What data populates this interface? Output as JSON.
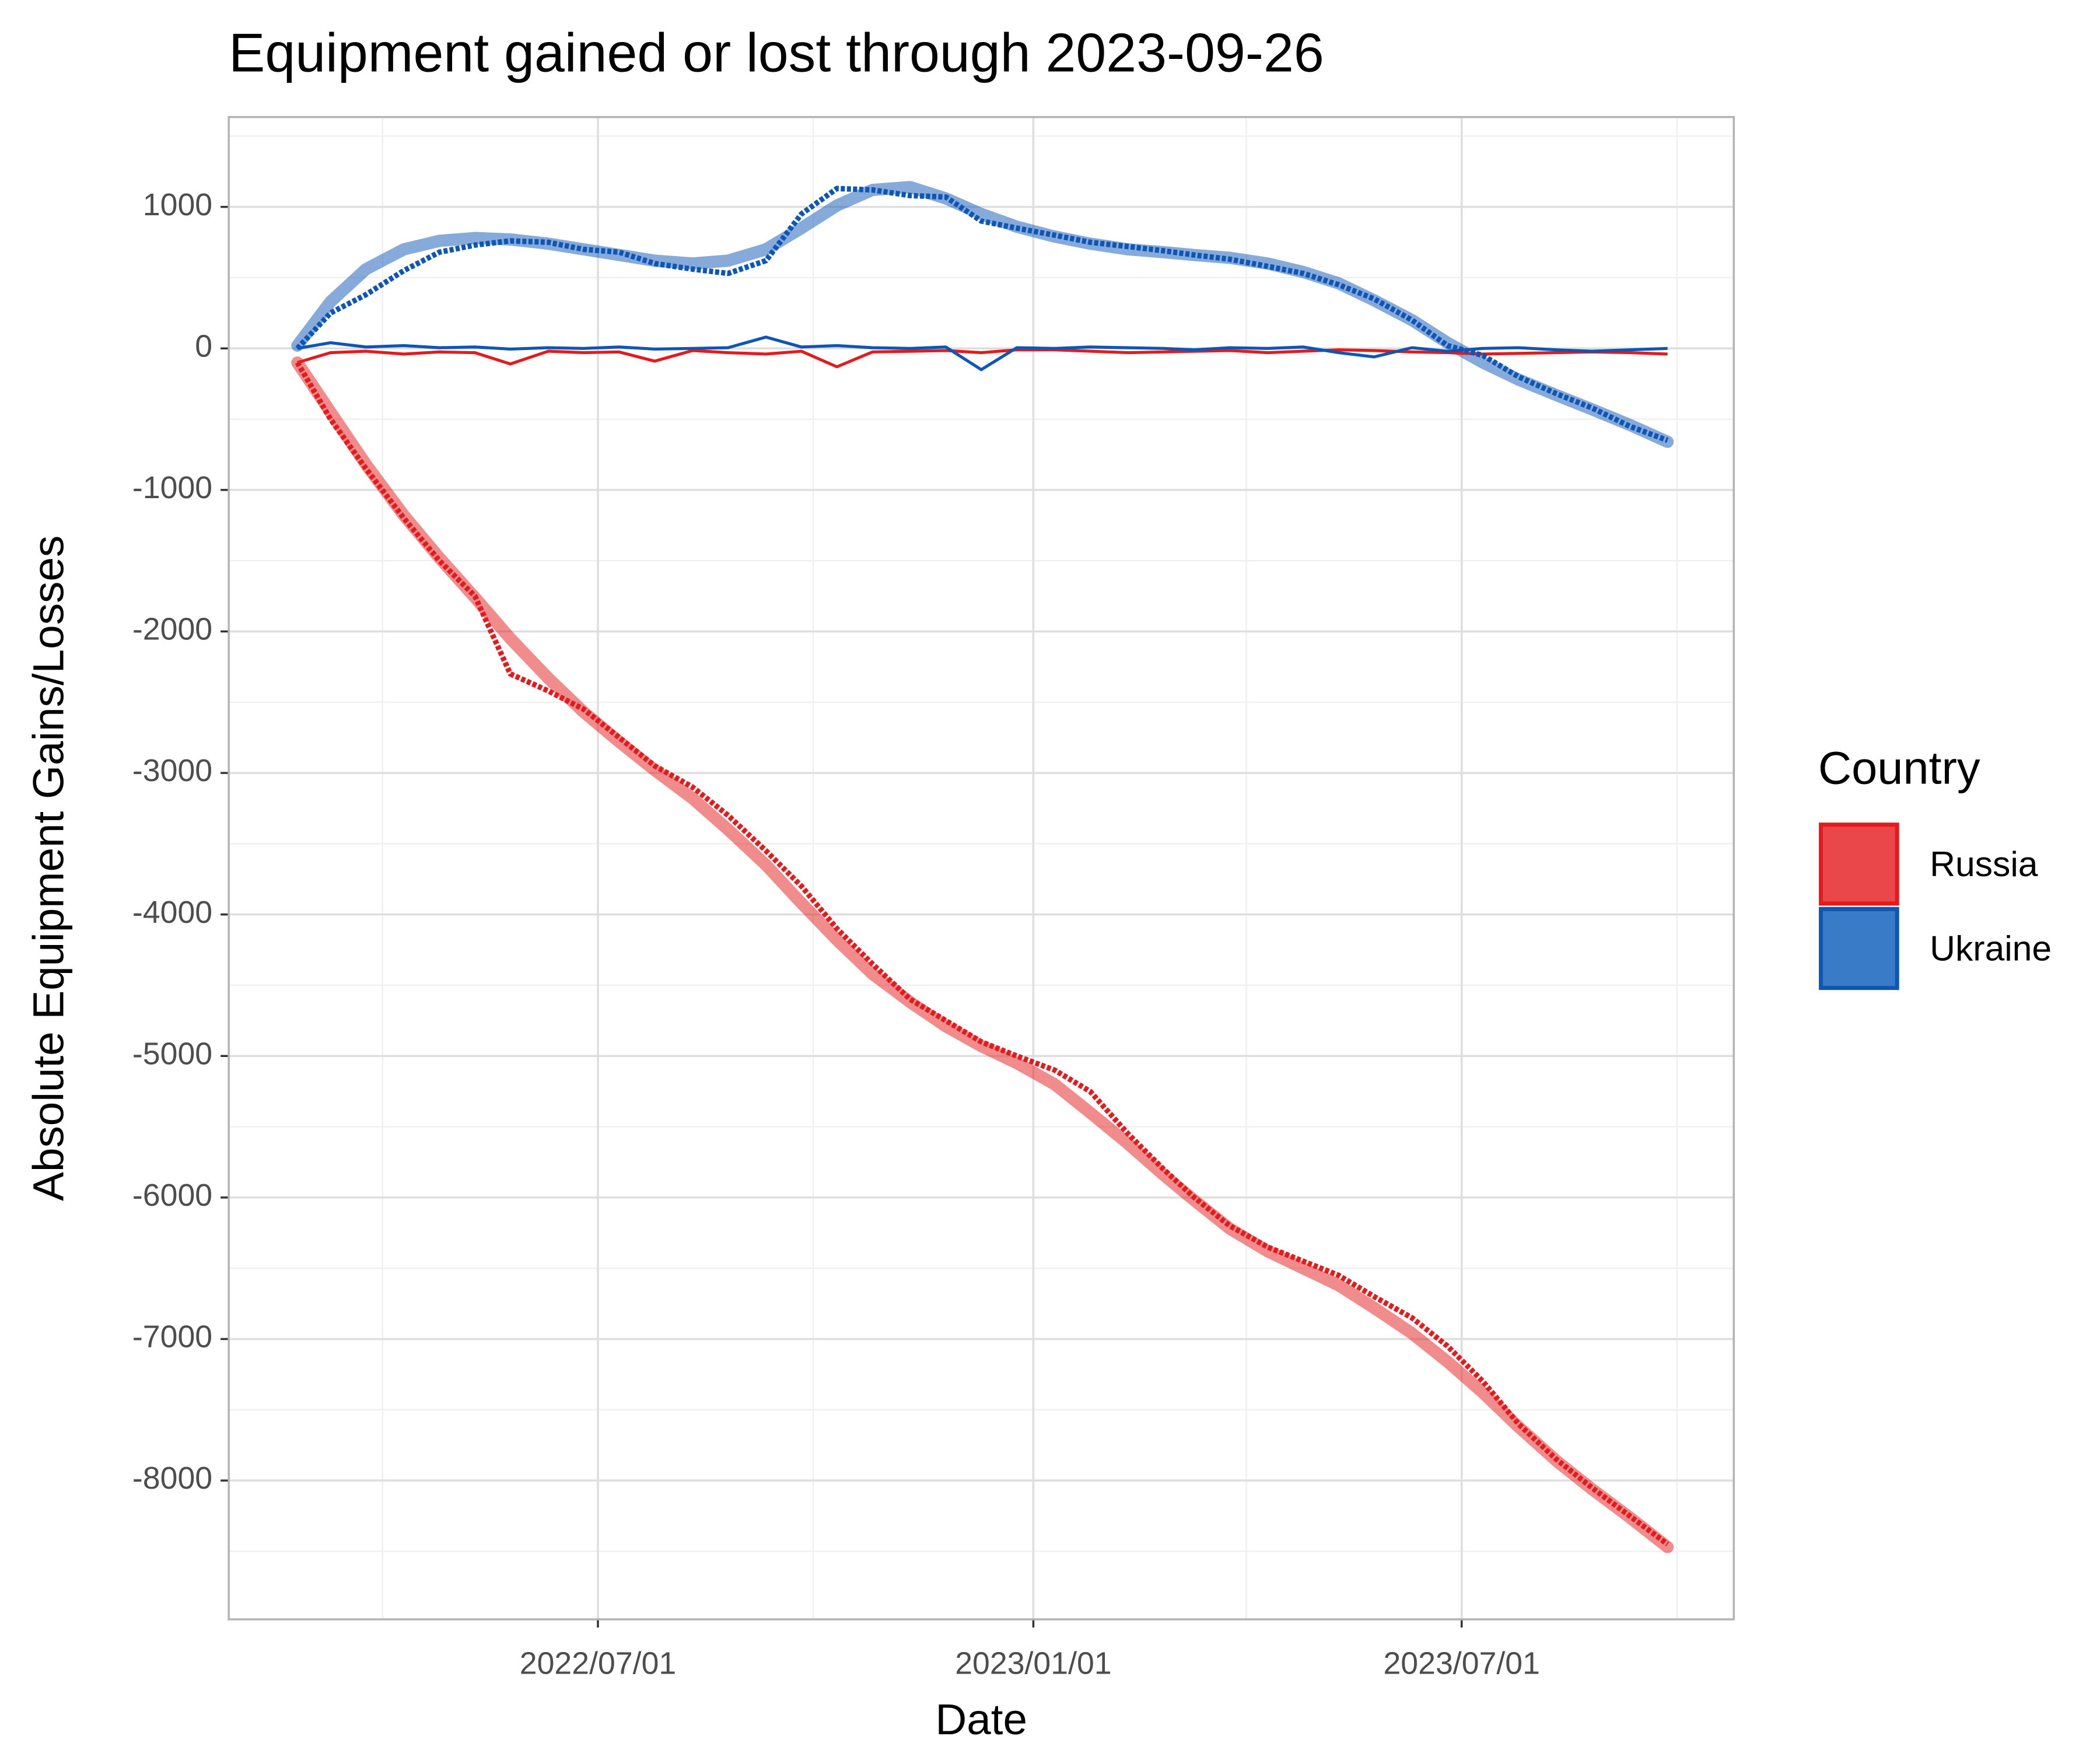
{
  "chart_data": {
    "type": "line",
    "title": "Equipment gained or lost through 2023-09-26",
    "x_label": "Date",
    "y_label": "Absolute Equipment Gains/Losses",
    "legend_title": "Country",
    "legend_position": "right",
    "grid": true,
    "xlim": [
      "2022/01/26",
      "2023/10/24"
    ],
    "xticks": [
      "2022/07/01",
      "2023/01/01",
      "2023/07/01"
    ],
    "xminor": [
      "2022/04/01",
      "2022/09/30",
      "2023/04/01",
      "2023/09/30"
    ],
    "ylim": [
      -8981,
      1635
    ],
    "yticks": [
      -8000,
      -7000,
      -6000,
      -5000,
      -4000,
      -3000,
      -2000,
      -1000,
      0,
      1000
    ],
    "yminor": [
      -8500,
      -7500,
      -6500,
      -5500,
      -4500,
      -3500,
      -2500,
      -1500,
      -500,
      500,
      1500
    ],
    "x": [
      "2022/02/24",
      "2022/03/10",
      "2022/03/25",
      "2022/04/10",
      "2022/04/25",
      "2022/05/10",
      "2022/05/25",
      "2022/06/10",
      "2022/06/25",
      "2022/07/10",
      "2022/07/25",
      "2022/08/10",
      "2022/08/25",
      "2022/09/10",
      "2022/09/25",
      "2022/10/10",
      "2022/10/25",
      "2022/11/10",
      "2022/11/25",
      "2022/12/10",
      "2022/12/25",
      "2023/01/10",
      "2023/01/25",
      "2023/02/10",
      "2023/02/25",
      "2023/03/10",
      "2023/03/25",
      "2023/04/10",
      "2023/04/25",
      "2023/05/10",
      "2023/05/25",
      "2023/06/10",
      "2023/06/25",
      "2023/07/10",
      "2023/07/25",
      "2023/08/10",
      "2023/08/25",
      "2023/09/10",
      "2023/09/26"
    ],
    "series": [
      {
        "name": "Russia",
        "color": "#e41a1c",
        "fill": "#e9474a",
        "values": [
          -100,
          -500,
          -850,
          -1200,
          -1500,
          -1750,
          -2300,
          -2420,
          -2550,
          -2750,
          -2950,
          -3100,
          -3300,
          -3550,
          -3800,
          -4100,
          -4350,
          -4600,
          -4750,
          -4900,
          -5000,
          -5100,
          -5250,
          -5550,
          -5800,
          -6000,
          -6200,
          -6350,
          -6450,
          -6550,
          -6700,
          -6850,
          -7050,
          -7300,
          -7600,
          -7850,
          -8050,
          -8250,
          -8450
        ],
        "trend": [
          -100,
          -450,
          -820,
          -1180,
          -1480,
          -1760,
          -2050,
          -2330,
          -2570,
          -2780,
          -2980,
          -3180,
          -3400,
          -3650,
          -3920,
          -4180,
          -4420,
          -4620,
          -4790,
          -4930,
          -5050,
          -5200,
          -5400,
          -5620,
          -5840,
          -6020,
          -6220,
          -6380,
          -6500,
          -6620,
          -6780,
          -6960,
          -7160,
          -7380,
          -7620,
          -7860,
          -8060,
          -8260,
          -8470
        ],
        "daily": [
          -100,
          -30,
          -20,
          -40,
          -25,
          -30,
          -110,
          -20,
          -30,
          -25,
          -90,
          -15,
          -30,
          -40,
          -20,
          -130,
          -25,
          -20,
          -15,
          -30,
          -10,
          -10,
          -20,
          -30,
          -25,
          -20,
          -15,
          -30,
          -20,
          -10,
          -15,
          -25,
          -30,
          -40,
          -35,
          -30,
          -25,
          -30,
          -40
        ]
      },
      {
        "name": "Ukraine",
        "color": "#0d56b5",
        "fill": "#3a7bc8",
        "values": [
          0,
          250,
          380,
          550,
          680,
          730,
          760,
          750,
          700,
          680,
          600,
          560,
          530,
          620,
          950,
          1130,
          1120,
          1080,
          1070,
          900,
          850,
          800,
          750,
          720,
          690,
          660,
          630,
          580,
          530,
          450,
          350,
          200,
          20,
          -50,
          -200,
          -320,
          -420,
          -550,
          -650
        ],
        "trend": [
          20,
          330,
          560,
          700,
          760,
          780,
          770,
          740,
          700,
          660,
          620,
          600,
          620,
          700,
          850,
          1010,
          1120,
          1140,
          1060,
          950,
          860,
          790,
          740,
          700,
          680,
          660,
          640,
          600,
          540,
          460,
          340,
          200,
          40,
          -100,
          -220,
          -330,
          -430,
          -540,
          -660
        ],
        "daily": [
          0,
          40,
          10,
          20,
          5,
          10,
          -5,
          5,
          0,
          10,
          -5,
          0,
          5,
          80,
          10,
          20,
          5,
          0,
          10,
          -150,
          5,
          0,
          10,
          5,
          0,
          -10,
          5,
          0,
          10,
          -30,
          -60,
          5,
          -20,
          0,
          5,
          -10,
          -20,
          -10,
          0
        ]
      }
    ]
  }
}
